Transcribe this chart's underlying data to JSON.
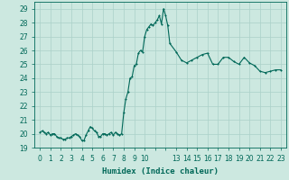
{
  "title": "",
  "xlabel": "Humidex (Indice chaleur)",
  "ylabel": "",
  "background_color": "#cce8e0",
  "grid_color": "#aad0c8",
  "line_color": "#006858",
  "xlim": [
    -0.5,
    23.5
  ],
  "ylim": [
    19,
    29.5
  ],
  "yticks": [
    19,
    20,
    21,
    22,
    23,
    24,
    25,
    26,
    27,
    28,
    29
  ],
  "xticks": [
    0,
    1,
    2,
    3,
    4,
    5,
    6,
    7,
    8,
    9,
    10,
    13,
    14,
    15,
    16,
    17,
    18,
    19,
    20,
    21,
    22,
    23
  ],
  "x": [
    0.0,
    0.2,
    0.4,
    0.6,
    0.8,
    1.0,
    1.2,
    1.4,
    1.6,
    1.8,
    2.0,
    2.2,
    2.4,
    2.6,
    2.8,
    3.0,
    3.2,
    3.4,
    3.6,
    3.8,
    4.0,
    4.2,
    4.4,
    4.6,
    4.8,
    5.0,
    5.2,
    5.4,
    5.6,
    5.8,
    6.0,
    6.2,
    6.4,
    6.6,
    6.8,
    7.0,
    7.2,
    7.4,
    7.6,
    7.8,
    8.0,
    8.2,
    8.4,
    8.6,
    8.8,
    9.0,
    9.2,
    9.4,
    9.6,
    9.8,
    10.0,
    10.2,
    10.4,
    10.6,
    10.8,
    11.0,
    11.2,
    11.4,
    11.6,
    11.8,
    12.0,
    12.2,
    12.4,
    13.0,
    13.5,
    14.0,
    14.5,
    15.0,
    15.5,
    16.0,
    16.5,
    17.0,
    17.5,
    18.0,
    18.5,
    19.0,
    19.5,
    20.0,
    20.5,
    21.0,
    21.5,
    22.0,
    22.5,
    23.0
  ],
  "y": [
    20.1,
    20.2,
    20.1,
    20.0,
    20.1,
    19.9,
    20.0,
    20.0,
    19.8,
    19.7,
    19.7,
    19.6,
    19.6,
    19.7,
    19.7,
    19.8,
    19.9,
    20.0,
    19.9,
    19.8,
    19.5,
    19.5,
    19.9,
    20.2,
    20.5,
    20.4,
    20.2,
    20.1,
    19.8,
    19.8,
    20.0,
    20.0,
    19.9,
    20.0,
    20.1,
    19.9,
    20.1,
    20.0,
    19.9,
    20.0,
    21.5,
    22.5,
    23.0,
    24.0,
    24.1,
    24.9,
    25.0,
    25.8,
    26.0,
    25.9,
    27.0,
    27.5,
    27.7,
    27.9,
    27.8,
    28.0,
    28.2,
    28.5,
    27.9,
    29.0,
    28.5,
    27.8,
    26.5,
    25.9,
    25.3,
    25.1,
    25.3,
    25.5,
    25.7,
    25.8,
    25.0,
    25.0,
    25.5,
    25.5,
    25.2,
    25.0,
    25.5,
    25.1,
    24.9,
    24.5,
    24.4,
    24.5,
    24.6,
    24.6
  ],
  "marker": "+",
  "markersize": 2,
  "linewidth": 0.8,
  "fontsize_ticks": 5.5,
  "fontsize_xlabel": 6.5
}
